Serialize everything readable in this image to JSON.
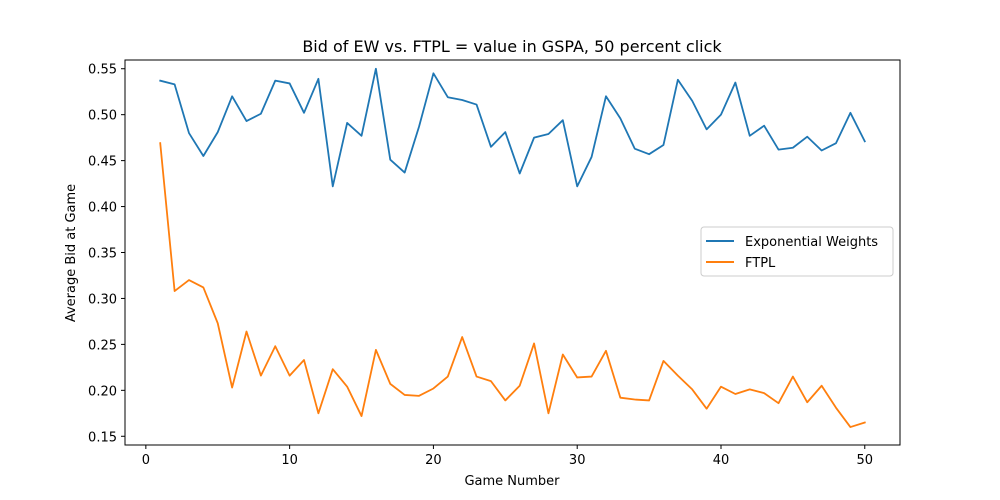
{
  "chart_data": {
    "type": "line",
    "title": "Bid of EW vs. FTPL = value in GSPA, 50 percent click",
    "xlabel": "Game Number",
    "ylabel": "Average Bid at Game",
    "xlim": [
      -1.45,
      52.45
    ],
    "ylim": [
      0.1405,
      0.5595
    ],
    "xticks": [
      0,
      10,
      20,
      30,
      40,
      50
    ],
    "yticks": [
      0.15,
      0.2,
      0.25,
      0.3,
      0.35,
      0.4,
      0.45,
      0.5,
      0.55
    ],
    "ytick_labels": [
      "0.15",
      "0.20",
      "0.25",
      "0.30",
      "0.35",
      "0.40",
      "0.45",
      "0.50",
      "0.55"
    ],
    "grid": false,
    "legend_position": "center-right",
    "x": [
      1,
      2,
      3,
      4,
      5,
      6,
      7,
      8,
      9,
      10,
      11,
      12,
      13,
      14,
      15,
      16,
      17,
      18,
      19,
      20,
      21,
      22,
      23,
      24,
      25,
      26,
      27,
      28,
      29,
      30,
      31,
      32,
      33,
      34,
      35,
      36,
      37,
      38,
      39,
      40,
      41,
      42,
      43,
      44,
      45,
      46,
      47,
      48,
      49,
      50
    ],
    "series": [
      {
        "name": "Exponential Weights",
        "color": "#1f77b4",
        "values": [
          0.537,
          0.533,
          0.48,
          0.455,
          0.481,
          0.52,
          0.493,
          0.501,
          0.537,
          0.534,
          0.502,
          0.539,
          0.422,
          0.491,
          0.477,
          0.55,
          0.451,
          0.437,
          0.487,
          0.545,
          0.519,
          0.516,
          0.511,
          0.465,
          0.481,
          0.436,
          0.475,
          0.479,
          0.494,
          0.422,
          0.454,
          0.52,
          0.496,
          0.463,
          0.457,
          0.467,
          0.538,
          0.515,
          0.484,
          0.5,
          0.535,
          0.477,
          0.488,
          0.462,
          0.464,
          0.476,
          0.461,
          0.469,
          0.502,
          0.471
        ]
      },
      {
        "name": "FTPL",
        "color": "#ff7f0e",
        "values": [
          0.469,
          0.308,
          0.32,
          0.312,
          0.273,
          0.203,
          0.264,
          0.216,
          0.248,
          0.216,
          0.233,
          0.175,
          0.223,
          0.204,
          0.172,
          0.244,
          0.207,
          0.195,
          0.194,
          0.202,
          0.215,
          0.258,
          0.215,
          0.21,
          0.189,
          0.205,
          0.251,
          0.175,
          0.239,
          0.214,
          0.215,
          0.243,
          0.192,
          0.19,
          0.189,
          0.232,
          0.216,
          0.201,
          0.18,
          0.204,
          0.196,
          0.201,
          0.197,
          0.186,
          0.215,
          0.187,
          0.205,
          0.181,
          0.16,
          0.165
        ]
      }
    ]
  }
}
